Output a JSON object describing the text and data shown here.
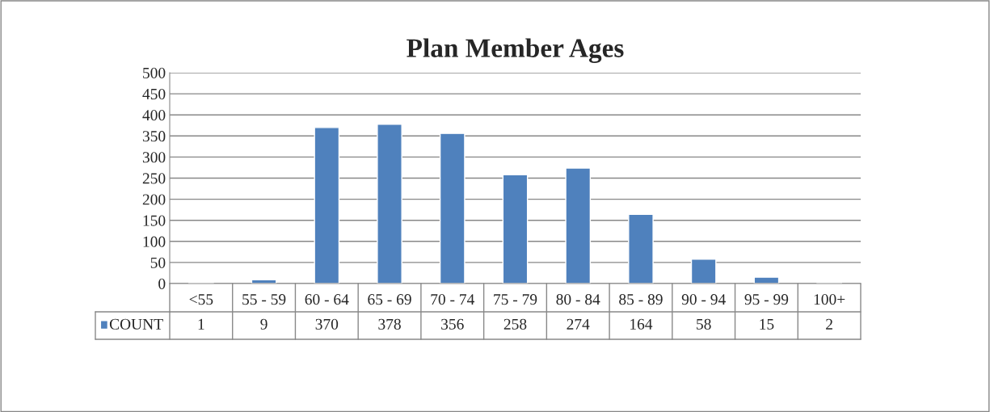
{
  "chart_data": {
    "type": "bar",
    "title": "Plan Member Ages",
    "categories": [
      "<55",
      "55 - 59",
      "60 - 64",
      "65 - 69",
      "70 - 74",
      "75 - 79",
      "80 - 84",
      "85 - 89",
      "90 - 94",
      "95 - 99",
      "100+"
    ],
    "series": [
      {
        "name": "COUNT",
        "color": "#4f81bd",
        "values": [
          1,
          9,
          370,
          378,
          356,
          258,
          274,
          164,
          58,
          15,
          2
        ]
      }
    ],
    "ylim": [
      0,
      500
    ],
    "yticks": [
      0,
      50,
      100,
      150,
      200,
      250,
      300,
      350,
      400,
      450,
      500
    ],
    "grid": "y",
    "legend": "bottom",
    "data_labels": true
  }
}
